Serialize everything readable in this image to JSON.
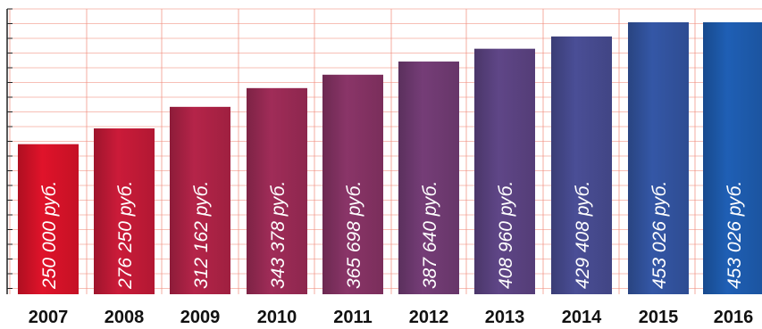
{
  "chart_data": {
    "type": "bar",
    "categories": [
      "2007",
      "2008",
      "2009",
      "2010",
      "2011",
      "2012",
      "2013",
      "2014",
      "2015",
      "2016"
    ],
    "values": [
      250000,
      276250,
      312162,
      343378,
      365698,
      387640,
      408960,
      429408,
      453026,
      453026
    ],
    "data_labels": [
      "250 000 руб.",
      "276 250 руб.",
      "312 162 руб.",
      "343 378 руб.",
      "365 698 руб.",
      "387 640 руб.",
      "408 960 руб.",
      "429 408 руб.",
      "453 026 руб.",
      "453 026 руб."
    ],
    "title": "",
    "xlabel": "",
    "ylabel": "",
    "grid": true,
    "colors": {
      "bar_start": "#e0132a",
      "bar_end": "#1f5fb5",
      "grid": "#f08a7a",
      "text": "#111111",
      "bar_text": "#ffffff"
    }
  }
}
